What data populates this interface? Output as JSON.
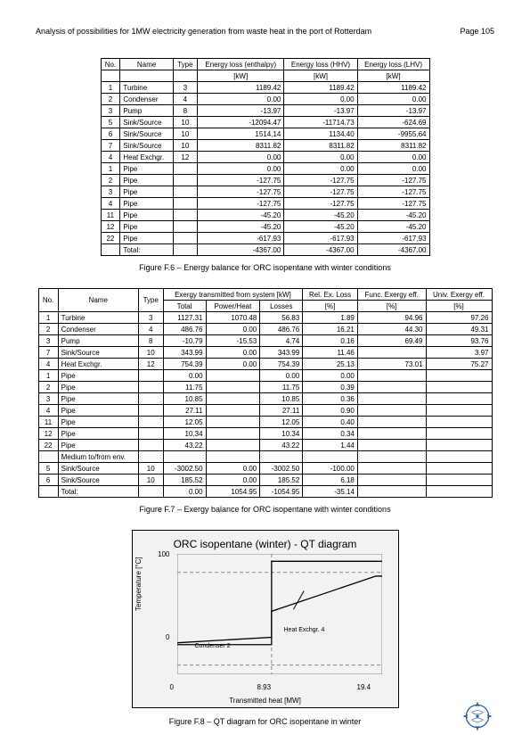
{
  "header": {
    "title": "Analysis of possibilities for 1MW electricity generation from waste heat in the port of Rotterdam",
    "page": "Page 105"
  },
  "table1": {
    "headers": [
      "No.",
      "Name",
      "Type",
      "Energy loss (enthalpy)",
      "Energy loss (HHV)",
      "Energy loss (LHV)"
    ],
    "subheaders": [
      "",
      "",
      "",
      "[kW]",
      "[kW]",
      "[kW]"
    ],
    "rows": [
      [
        "1",
        "Turbine",
        "3",
        "1189.42",
        "1189.42",
        "1189.42"
      ],
      [
        "2",
        "Condenser",
        "4",
        "0.00",
        "0.00",
        "0.00"
      ],
      [
        "3",
        "Pump",
        "8",
        "-13.97",
        "-13.97",
        "-13.97"
      ],
      [
        "5",
        "Sink/Source",
        "10",
        "-12094.47",
        "-11714.73",
        "-624.69"
      ],
      [
        "6",
        "Sink/Source",
        "10",
        "1514.14",
        "1134.40",
        "-9955.64"
      ],
      [
        "7",
        "Sink/Source",
        "10",
        "8311.82",
        "8311.82",
        "8311.82"
      ],
      [
        "4",
        "Heat Exchgr.",
        "12",
        "0.00",
        "0.00",
        "0.00"
      ],
      [
        "1",
        "Pipe",
        "",
        "0.00",
        "0.00",
        "0.00"
      ],
      [
        "2",
        "Pipe",
        "",
        "-127.75",
        "-127.75",
        "-127.75"
      ],
      [
        "3",
        "Pipe",
        "",
        "-127.75",
        "-127.75",
        "-127.75"
      ],
      [
        "4",
        "Pipe",
        "",
        "-127.75",
        "-127.75",
        "-127.75"
      ],
      [
        "11",
        "Pipe",
        "",
        "-45.20",
        "-45.20",
        "-45.20"
      ],
      [
        "12",
        "Pipe",
        "",
        "-45.20",
        "-45.20",
        "-45.20"
      ],
      [
        "22",
        "Pipe",
        "",
        "-617.93",
        "-617.93",
        "-617.93"
      ],
      [
        "",
        "Total:",
        "",
        "-4367.00",
        "-4367.00",
        "-4367.00"
      ]
    ]
  },
  "caption1": "Figure F.6 – Energy balance for ORC isopentane with winter conditions",
  "table2": {
    "headers": [
      "No.",
      "Name",
      "Type",
      "Exergy transmitted from system [kW]",
      "Rel. Ex. Loss",
      "Func. Exergy eff.",
      "Univ. Exergy eff."
    ],
    "subheaders": [
      "",
      "",
      "",
      "Total",
      "Power/Heat",
      "Losses",
      "[%]",
      "[%]",
      "[%]"
    ],
    "rows": [
      [
        "1",
        "Turbine",
        "3",
        "1127.31",
        "1070.48",
        "56.83",
        "1.89",
        "94.96",
        "97.26"
      ],
      [
        "2",
        "Condenser",
        "4",
        "486.76",
        "0.00",
        "486.76",
        "16.21",
        "44.30",
        "49.31"
      ],
      [
        "3",
        "Pump",
        "8",
        "-10.79",
        "-15.53",
        "4.74",
        "0.16",
        "69.49",
        "93.76"
      ],
      [
        "7",
        "Sink/Source",
        "10",
        "343.99",
        "0.00",
        "343.99",
        "11.46",
        "",
        "3.97"
      ],
      [
        "4",
        "Heat Exchgr.",
        "12",
        "754.39",
        "0.00",
        "754.39",
        "25.13",
        "73.01",
        "75.27"
      ],
      [
        "1",
        "Pipe",
        "",
        "0.00",
        "",
        "0.00",
        "0.00",
        "",
        ""
      ],
      [
        "2",
        "Pipe",
        "",
        "11.75",
        "",
        "11.75",
        "0.39",
        "",
        ""
      ],
      [
        "3",
        "Pipe",
        "",
        "10.85",
        "",
        "10.85",
        "0.36",
        "",
        ""
      ],
      [
        "4",
        "Pipe",
        "",
        "27.11",
        "",
        "27.11",
        "0.90",
        "",
        ""
      ],
      [
        "11",
        "Pipe",
        "",
        "12.05",
        "",
        "12.05",
        "0.40",
        "",
        ""
      ],
      [
        "12",
        "Pipe",
        "",
        "10.34",
        "",
        "10.34",
        "0.34",
        "",
        ""
      ],
      [
        "22",
        "Pipe",
        "",
        "43.22",
        "",
        "43.22",
        "1.44",
        "",
        ""
      ],
      [
        "",
        "Medium to/from env.",
        "",
        "",
        "",
        "",
        "",
        "",
        ""
      ],
      [
        "5",
        "Sink/Source",
        "10",
        "-3002.50",
        "0.00",
        "-3002.50",
        "-100.00",
        "",
        ""
      ],
      [
        "6",
        "Sink/Source",
        "10",
        "185.52",
        "0.00",
        "185.52",
        "6.18",
        "",
        ""
      ],
      [
        "",
        "Total:",
        "",
        "0.00",
        "1054.95",
        "-1054.95",
        "-35.14",
        "",
        ""
      ]
    ]
  },
  "caption2": "Figure F.7 – Exergy balance for ORC isopentane with winter conditions",
  "chart": {
    "title": "ORC isopentane (winter) - QT diagram",
    "ytitle": "Temperature [°C]",
    "xtitle": "Transmitted heat [MW]",
    "yrange": [
      0,
      100
    ],
    "xrange": [
      0,
      19.4
    ],
    "xticks": [
      0,
      8.93,
      19.4
    ],
    "yticks": [
      0,
      100
    ],
    "ann_condenser": "Condenser 2",
    "ann_heatex": "Heat Exchgr. 4",
    "colors": {
      "grid": "#888888",
      "line": "#000000",
      "bg": "#f4f2f0"
    },
    "seriesA": [
      [
        0,
        24
      ],
      [
        8.93,
        30
      ],
      [
        8.93,
        112
      ],
      [
        19.4,
        112
      ]
    ],
    "seriesB": [
      [
        0,
        22
      ],
      [
        8.93,
        22
      ],
      [
        8.93,
        58
      ],
      [
        18.8,
        96
      ],
      [
        19.4,
        96
      ]
    ]
  },
  "caption3": "Figure F.8 – QT diagram for ORC isopentane in winter"
}
